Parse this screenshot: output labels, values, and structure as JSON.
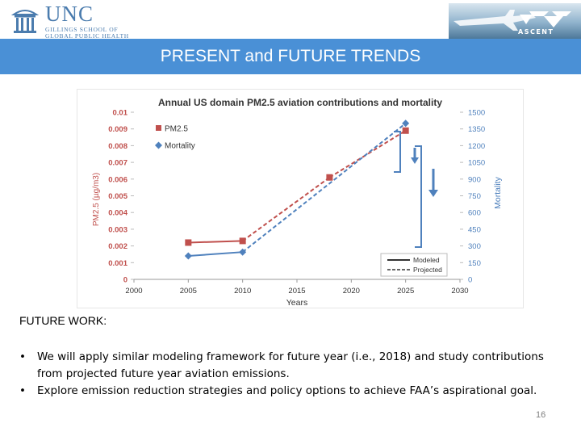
{
  "header": {
    "logo_left": {
      "name": "UNC",
      "line1": "GILLINGS SCHOOL OF",
      "line2": "GLOBAL PUBLIC HEALTH"
    },
    "logo_right": {
      "name": "ASCENT"
    }
  },
  "title": "PRESENT and FUTURE TRENDS",
  "chart_data": {
    "type": "line",
    "title": "Annual US domain PM2.5 aviation contributions and mortality",
    "xlabel": "Years",
    "ylabel_left": "PM2.5 (µg/m3)",
    "ylabel_right": "Mortality",
    "x_ticks": [
      "2000",
      "2005",
      "2010",
      "2015",
      "2020",
      "2025",
      "2030"
    ],
    "x_range": [
      2000,
      2030
    ],
    "y_left_ticks": [
      "0",
      "0.001",
      "0.002",
      "0.003",
      "0.004",
      "0.005",
      "0.006",
      "0.007",
      "0.008",
      "0.009",
      "0.01"
    ],
    "y_left_range": [
      0,
      0.01
    ],
    "y_right_ticks": [
      "0",
      "150",
      "300",
      "450",
      "600",
      "750",
      "900",
      "1050",
      "1200",
      "1350",
      "1500"
    ],
    "y_right_range": [
      0,
      1500
    ],
    "series": [
      {
        "name": "PM2.5",
        "axis": "left",
        "color": "#c0504d",
        "marker": "square",
        "x": [
          2005,
          2010,
          2018,
          2025
        ],
        "y": [
          0.0022,
          0.0023,
          0.0061,
          0.0089
        ],
        "modeled_until": 2010
      },
      {
        "name": "Mortality",
        "axis": "right",
        "color": "#4f81bd",
        "marker": "diamond",
        "x": [
          2005,
          2010,
          2025
        ],
        "y": [
          210,
          245,
          1400
        ],
        "modeled_until": 2010
      }
    ],
    "legend": [
      "PM2.5",
      "Mortality"
    ],
    "line_style_legend": [
      "Modeled",
      "Projected"
    ]
  },
  "future_work": {
    "heading": "FUTURE WORK:",
    "bullets": [
      "We will apply similar modeling framework for future year (i.e., 2018) and study contributions from projected future year aviation emissions.",
      "Explore emission reduction strategies and policy options to achieve FAA’s aspirational goal."
    ],
    "bullet_symbol": "•"
  },
  "page_number": "16"
}
